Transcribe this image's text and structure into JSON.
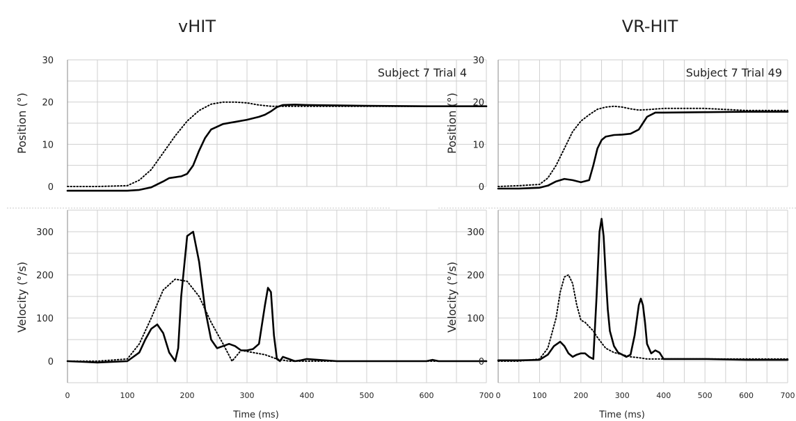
{
  "chart_data": [
    {
      "type": "line",
      "title": "vHIT",
      "annotation": "Subject 7 Trial 4",
      "xlabel": "Time (ms)",
      "xlim": [
        0,
        700
      ],
      "x_ticks": [
        "0",
        "100",
        "200",
        "300",
        "400",
        "500",
        "600",
        "700"
      ],
      "grid": true,
      "panels": [
        {
          "ylabel": "Position (°)",
          "ylim": [
            0,
            30
          ],
          "y_ticks": [
            "0",
            "10",
            "20",
            "30"
          ],
          "series": [
            {
              "style": "dotted",
              "x": [
                0,
                50,
                100,
                120,
                140,
                160,
                180,
                200,
                220,
                240,
                260,
                280,
                300,
                320,
                340,
                360,
                400,
                500,
                600,
                700
              ],
              "y": [
                0,
                0,
                0.2,
                1.5,
                4,
                8,
                12,
                15.5,
                18,
                19.5,
                20,
                20,
                19.8,
                19.3,
                19,
                19,
                19,
                19,
                19,
                19
              ]
            },
            {
              "style": "solid",
              "x": [
                0,
                50,
                100,
                120,
                140,
                160,
                170,
                180,
                190,
                200,
                210,
                220,
                230,
                240,
                260,
                280,
                300,
                320,
                330,
                340,
                350,
                360,
                380,
                400,
                500,
                600,
                700
              ],
              "y": [
                -1,
                -1,
                -1,
                -0.8,
                -0.2,
                1.2,
                2,
                2.2,
                2.4,
                3,
                5,
                8.5,
                11.5,
                13.5,
                14.8,
                15.3,
                15.8,
                16.5,
                17,
                17.8,
                18.8,
                19.3,
                19.4,
                19.3,
                19.1,
                19,
                19
              ]
            }
          ]
        },
        {
          "ylabel": "Velocity (°/s)",
          "ylim": [
            -50,
            350
          ],
          "y_ticks": [
            "0",
            "100",
            "200",
            "300"
          ],
          "series": [
            {
              "style": "dotted",
              "x": [
                0,
                50,
                100,
                120,
                140,
                160,
                180,
                200,
                220,
                240,
                260,
                275,
                290,
                310,
                330,
                350,
                370,
                400,
                450,
                500,
                600,
                700
              ],
              "y": [
                0,
                0,
                5,
                40,
                100,
                165,
                190,
                185,
                150,
                90,
                40,
                0,
                25,
                20,
                15,
                5,
                0,
                0,
                0,
                0,
                0,
                0
              ]
            },
            {
              "style": "solid",
              "x": [
                0,
                50,
                100,
                120,
                130,
                140,
                150,
                160,
                170,
                180,
                185,
                190,
                200,
                210,
                220,
                230,
                240,
                250,
                260,
                270,
                280,
                290,
                300,
                310,
                320,
                330,
                335,
                340,
                345,
                350,
                355,
                360,
                370,
                380,
                390,
                400,
                450,
                500,
                600,
                610,
                620,
                700
              ],
              "y": [
                0,
                -3,
                0,
                20,
                50,
                75,
                85,
                65,
                20,
                0,
                30,
                150,
                290,
                300,
                230,
                120,
                50,
                30,
                35,
                40,
                35,
                25,
                25,
                28,
                40,
                130,
                170,
                160,
                60,
                5,
                0,
                10,
                5,
                0,
                2,
                5,
                0,
                0,
                0,
                3,
                0,
                0
              ]
            }
          ]
        }
      ]
    },
    {
      "type": "line",
      "title": "VR-HIT",
      "annotation": "Subject 7 Trial 49",
      "xlabel": "Time (ms)",
      "xlim": [
        0,
        700
      ],
      "x_ticks": [
        "0",
        "100",
        "200",
        "300",
        "400",
        "500",
        "600",
        "700"
      ],
      "grid": true,
      "panels": [
        {
          "ylabel": "Position (°)",
          "ylim": [
            0,
            30
          ],
          "y_ticks": [
            "0",
            "10",
            "20",
            "30"
          ],
          "series": [
            {
              "style": "dotted",
              "x": [
                0,
                50,
                100,
                120,
                140,
                160,
                180,
                200,
                220,
                240,
                260,
                280,
                300,
                320,
                340,
                360,
                400,
                500,
                600,
                700
              ],
              "y": [
                0,
                0.2,
                0.5,
                2,
                5,
                9,
                13,
                15.5,
                17,
                18.3,
                18.8,
                19,
                18.8,
                18.4,
                18.1,
                18.2,
                18.5,
                18.5,
                18,
                18
              ]
            },
            {
              "style": "solid",
              "x": [
                0,
                50,
                100,
                120,
                140,
                160,
                180,
                200,
                220,
                230,
                240,
                250,
                260,
                280,
                300,
                320,
                340,
                350,
                360,
                380,
                400,
                500,
                600,
                700
              ],
              "y": [
                -0.5,
                -0.5,
                -0.3,
                0.2,
                1.2,
                1.8,
                1.5,
                1,
                1.5,
                5,
                9,
                11,
                11.8,
                12.2,
                12.3,
                12.5,
                13.5,
                15,
                16.5,
                17.5,
                17.5,
                17.6,
                17.7,
                17.7
              ]
            }
          ]
        },
        {
          "ylabel": "Velocity (°/s)",
          "ylim": [
            -50,
            350
          ],
          "y_ticks": [
            "0",
            "100",
            "200",
            "300"
          ],
          "series": [
            {
              "style": "dotted",
              "x": [
                0,
                50,
                100,
                120,
                140,
                150,
                160,
                170,
                180,
                190,
                200,
                210,
                220,
                230,
                240,
                260,
                280,
                300,
                320,
                340,
                360,
                400,
                450,
                500,
                600,
                700
              ],
              "y": [
                0,
                0,
                5,
                30,
                100,
                160,
                195,
                200,
                180,
                130,
                95,
                90,
                80,
                70,
                55,
                30,
                20,
                15,
                10,
                8,
                5,
                5,
                5,
                5,
                5,
                5
              ]
            },
            {
              "style": "solid",
              "x": [
                0,
                50,
                100,
                120,
                135,
                150,
                160,
                170,
                180,
                190,
                200,
                210,
                220,
                230,
                238,
                245,
                250,
                255,
                260,
                265,
                270,
                280,
                290,
                300,
                310,
                320,
                330,
                340,
                345,
                350,
                355,
                360,
                370,
                380,
                390,
                400,
                500,
                600,
                700
              ],
              "y": [
                2,
                2,
                3,
                15,
                35,
                45,
                35,
                18,
                10,
                15,
                18,
                18,
                10,
                5,
                150,
                300,
                330,
                290,
                200,
                120,
                70,
                35,
                20,
                15,
                10,
                15,
                60,
                130,
                145,
                130,
                90,
                40,
                18,
                25,
                20,
                5,
                5,
                3,
                3
              ]
            }
          ]
        }
      ]
    }
  ]
}
